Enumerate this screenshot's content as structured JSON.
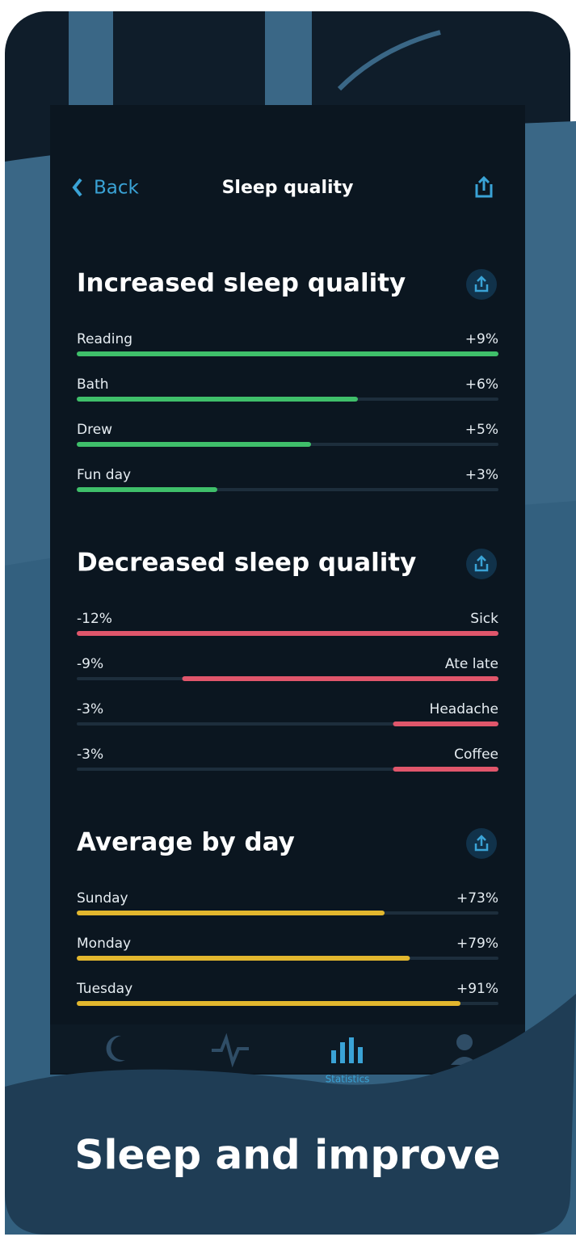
{
  "header": {
    "back": "Back",
    "title": "Sleep quality"
  },
  "sections": [
    {
      "title": "Increased sleep quality",
      "color": "#3fbf6a",
      "xlim": [
        0,
        9
      ],
      "items": [
        {
          "label": "Reading",
          "value": 9,
          "value_label": "+9%"
        },
        {
          "label": "Bath",
          "value": 6,
          "value_label": "+6%"
        },
        {
          "label": "Drew",
          "value": 5,
          "value_label": "+5%"
        },
        {
          "label": "Fun day",
          "value": 3,
          "value_label": "+3%"
        }
      ]
    },
    {
      "title": "Decreased sleep quality",
      "color": "#e0566b",
      "xlim": [
        -12,
        0
      ],
      "items": [
        {
          "label": "Sick",
          "value": -12,
          "value_label": "-12%"
        },
        {
          "label": "Ate late",
          "value": -9,
          "value_label": "-9%"
        },
        {
          "label": "Headache",
          "value": -3,
          "value_label": "-3%"
        },
        {
          "label": "Coffee",
          "value": -3,
          "value_label": "-3%"
        }
      ]
    },
    {
      "title": "Average by day",
      "color": "#e2b72e",
      "xlim": [
        0,
        100
      ],
      "items": [
        {
          "label": "Sunday",
          "value": 73,
          "value_label": "+73%"
        },
        {
          "label": "Monday",
          "value": 79,
          "value_label": "+79%"
        },
        {
          "label": "Tuesday",
          "value": 91,
          "value_label": "+91%"
        }
      ]
    }
  ],
  "tabs": {
    "active": "Statistics"
  },
  "caption": "Sleep and improve"
}
